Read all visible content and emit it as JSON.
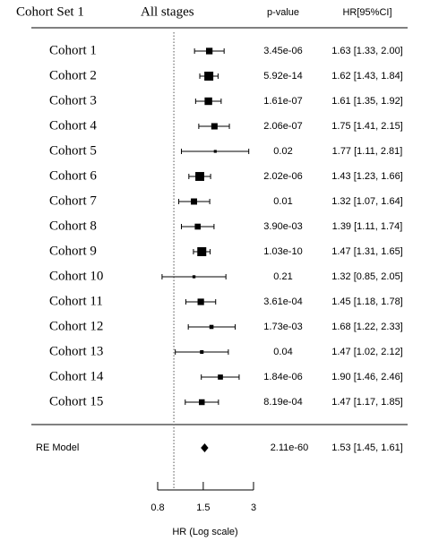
{
  "chart_data": {
    "type": "forest",
    "header": {
      "group": "Cohort Set 1",
      "stage": "All stages",
      "p_col": "p-value",
      "hr_col": "HR[95%CI]"
    },
    "categories": [
      "Cohort 1",
      "Cohort 2",
      "Cohort 3",
      "Cohort 4",
      "Cohort 5",
      "Cohort 6",
      "Cohort 7",
      "Cohort 8",
      "Cohort 9",
      "Cohort 10",
      "Cohort 11",
      "Cohort 12",
      "Cohort 13",
      "Cohort 14",
      "Cohort 15"
    ],
    "values": [
      1.63,
      1.62,
      1.61,
      1.75,
      1.77,
      1.43,
      1.32,
      1.39,
      1.47,
      1.32,
      1.45,
      1.68,
      1.47,
      1.9,
      1.47
    ],
    "lower": [
      1.33,
      1.43,
      1.35,
      1.41,
      1.11,
      1.23,
      1.07,
      1.11,
      1.31,
      0.85,
      1.18,
      1.22,
      1.02,
      1.46,
      1.17
    ],
    "upper": [
      2.0,
      1.84,
      1.92,
      2.15,
      2.81,
      1.66,
      1.64,
      1.74,
      1.65,
      2.05,
      1.78,
      2.33,
      2.12,
      2.46,
      1.85
    ],
    "value_labels": [
      "1.63 [1.33, 2.00]",
      "1.62 [1.43, 1.84]",
      "1.61 [1.35, 1.92]",
      "1.75 [1.41, 2.15]",
      "1.77 [1.11, 2.81]",
      "1.43 [1.23, 1.66]",
      "1.32 [1.07, 1.64]",
      "1.39 [1.11, 1.74]",
      "1.47 [1.31, 1.65]",
      "1.32 [0.85, 2.05]",
      "1.45 [1.18, 1.78]",
      "1.68 [1.22, 2.33]",
      "1.47 [1.02, 2.12]",
      "1.90 [1.46, 2.46]",
      "1.47 [1.17, 1.85]"
    ],
    "p_values": [
      "3.45e-06",
      "5.92e-14",
      "1.61e-07",
      "2.06e-07",
      "0.02",
      "2.02e-06",
      "0.01",
      "3.90e-03",
      "1.03e-10",
      "0.21",
      "3.61e-04",
      "1.73e-03",
      "0.04",
      "1.84e-06",
      "8.19e-04"
    ],
    "summary": {
      "name": "RE Model",
      "value": 1.53,
      "lower": 1.45,
      "upper": 1.61,
      "p_value": "2.11e-60",
      "value_label": "1.53 [1.45, 1.61]"
    },
    "reference_line": 1,
    "xlabel": "HR (Log scale)",
    "xscale": "log",
    "xlim": [
      0.8,
      3
    ],
    "xticks": [
      0.8,
      1.5,
      3
    ],
    "color": "#000000"
  }
}
